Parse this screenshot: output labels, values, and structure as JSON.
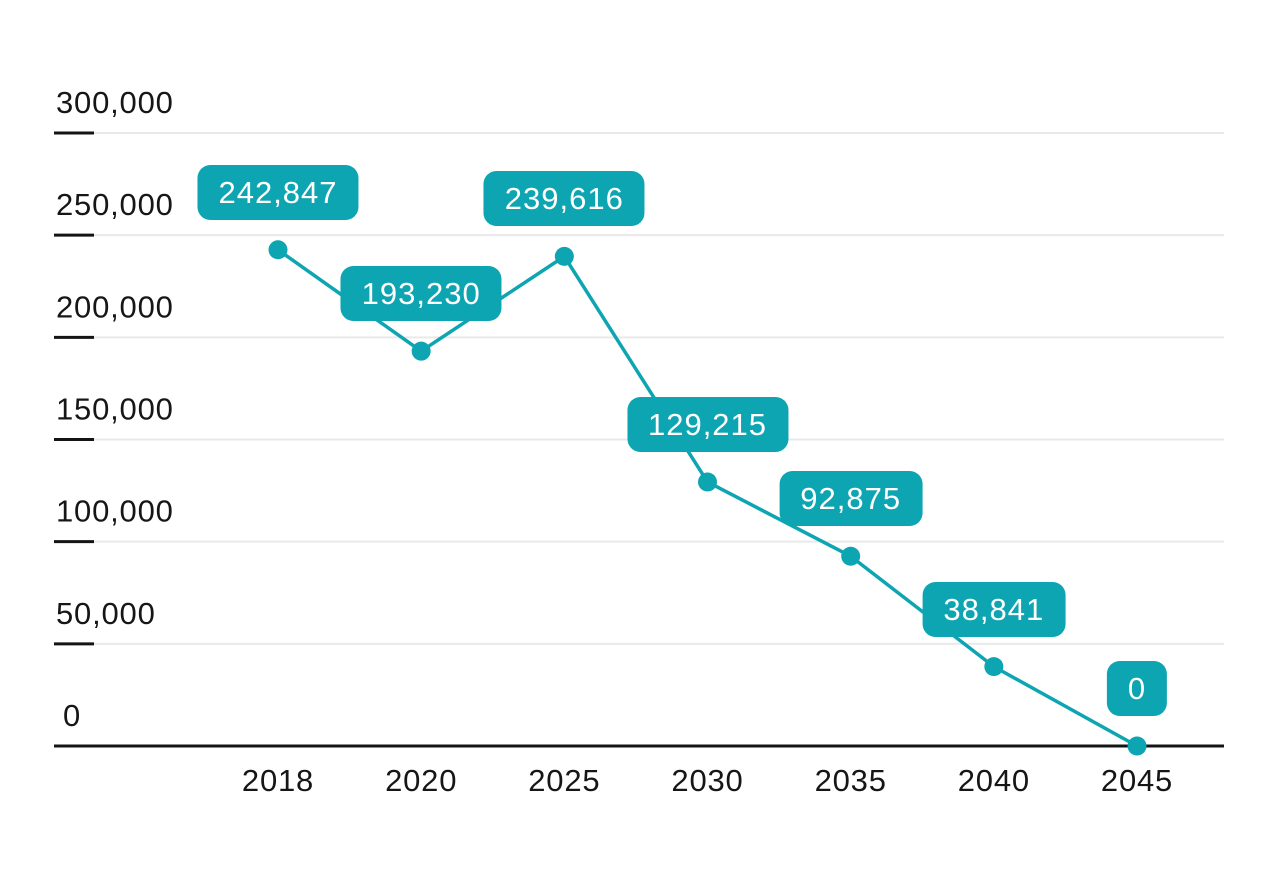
{
  "chart_data": {
    "type": "line",
    "categories": [
      "2018",
      "2020",
      "2025",
      "2030",
      "2035",
      "2040",
      "2045"
    ],
    "values": [
      242847,
      193230,
      239616,
      129215,
      92875,
      38841,
      0
    ],
    "point_labels": [
      "242,847",
      "193,230",
      "239,616",
      "129,215",
      "92,875",
      "38,841",
      "0"
    ],
    "title": "",
    "xlabel": "",
    "ylabel": "",
    "ylim": [
      0,
      300000
    ],
    "ytick_values": [
      0,
      50000,
      100000,
      150000,
      200000,
      250000,
      300000
    ],
    "ytick_labels": [
      "0",
      "50,000",
      "100,000",
      "150,000",
      "200,000",
      "250,000",
      "300,000"
    ],
    "grid": true,
    "legend_position": "none",
    "marker": "circle",
    "label_style": "badge"
  },
  "colors": {
    "accent_teal": "#0ea5b2",
    "badge_text": "#ffffff",
    "axis_text": "#161616",
    "axis_line": "#141414",
    "gridline": "#e9e9e9",
    "background": "#ffffff"
  }
}
